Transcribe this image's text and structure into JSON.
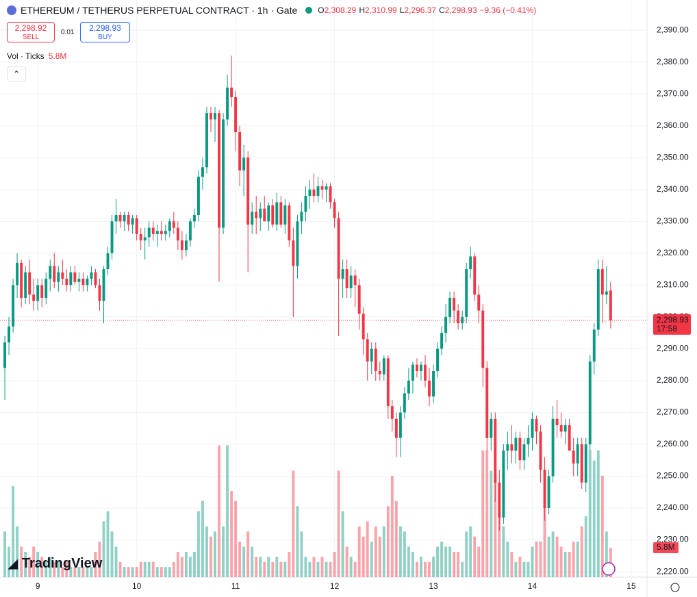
{
  "chart_data": {
    "type": "candlestick",
    "title": "ETHEREUM / TETHERUS PERPETUAL CONTRACT · 1h · Gate",
    "ohlc_legend": [
      {
        "label": "O",
        "value": "2,308.29"
      },
      {
        "label": "H",
        "value": "2,310.99"
      },
      {
        "label": "L",
        "value": "2,296.37"
      },
      {
        "label": "C",
        "value": "2,298.93"
      }
    ],
    "change": "−9.36 (−0.41%)",
    "sell": {
      "price": "2,298.92",
      "label": "SELL"
    },
    "spread": "0.01",
    "buy": {
      "price": "2,298.93",
      "label": "BUY"
    },
    "volume_legend": "Vol · Ticks",
    "last_volume_label": "5.8M",
    "last_price_label": "2,298.93",
    "countdown": "17:58",
    "logo": "TradingView",
    "up_color": "#089981",
    "down_color": "#f23645",
    "grid": true,
    "ylim": [
      2218.3,
      2399.5
    ],
    "yticks": [
      {
        "value": 2390,
        "label": "2,390.00"
      },
      {
        "value": 2380,
        "label": "2,380.00"
      },
      {
        "value": 2370,
        "label": "2,370.00"
      },
      {
        "value": 2360,
        "label": "2,360.00"
      },
      {
        "value": 2350,
        "label": "2,350.00"
      },
      {
        "value": 2340,
        "label": "2,340.00"
      },
      {
        "value": 2330,
        "label": "2,330.00"
      },
      {
        "value": 2320,
        "label": "2,320.00"
      },
      {
        "value": 2310,
        "label": "2,310.00"
      },
      {
        "value": 2300,
        "label": "2,300.00"
      },
      {
        "value": 2290,
        "label": "2,290.00"
      },
      {
        "value": 2280,
        "label": "2,280.00"
      },
      {
        "value": 2270,
        "label": "2,270.00"
      },
      {
        "value": 2260,
        "label": "2,260.00"
      },
      {
        "value": 2250,
        "label": "2,250.00"
      },
      {
        "value": 2240,
        "label": "2,240.00"
      },
      {
        "value": 2230,
        "label": "2,230.00"
      },
      {
        "value": 2220,
        "label": "2,220.00"
      }
    ],
    "xlim": [
      -1.17,
      155.83
    ],
    "xticks": [
      {
        "value": 8,
        "label": "9"
      },
      {
        "value": 32,
        "label": "10"
      },
      {
        "value": 56,
        "label": "11"
      },
      {
        "value": 80,
        "label": "12"
      },
      {
        "value": 104,
        "label": "13"
      },
      {
        "value": 128,
        "label": "14"
      },
      {
        "value": 152,
        "label": "15"
      }
    ],
    "vlim": [
      0,
      113.8
    ],
    "ohlcv": [
      [
        2284,
        2294,
        2274,
        2292,
        9
      ],
      [
        2292,
        2300,
        2288,
        2297,
        6
      ],
      [
        2297,
        2312,
        2295,
        2310,
        18
      ],
      [
        2310,
        2320,
        2306,
        2317,
        10
      ],
      [
        2317,
        2318,
        2303,
        2306,
        6
      ],
      [
        2306,
        2316,
        2304,
        2314,
        5
      ],
      [
        2314,
        2318,
        2304,
        2307,
        4
      ],
      [
        2307,
        2312,
        2302,
        2305,
        6
      ],
      [
        2305,
        2312,
        2302,
        2310,
        5
      ],
      [
        2310,
        2312,
        2303,
        2306,
        4
      ],
      [
        2306,
        2314,
        2304,
        2312,
        3
      ],
      [
        2312,
        2318,
        2308,
        2316,
        4
      ],
      [
        2316,
        2320,
        2309,
        2311,
        3
      ],
      [
        2311,
        2316,
        2308,
        2314,
        3
      ],
      [
        2314,
        2318,
        2310,
        2312,
        2
      ],
      [
        2312,
        2315,
        2308,
        2310,
        3
      ],
      [
        2310,
        2316,
        2308,
        2314,
        2
      ],
      [
        2314,
        2316,
        2310,
        2311,
        2
      ],
      [
        2311,
        2314,
        2308,
        2312,
        2
      ],
      [
        2312,
        2314,
        2308,
        2310,
        2
      ],
      [
        2310,
        2313,
        2308,
        2312,
        2
      ],
      [
        2312,
        2316,
        2310,
        2314,
        2
      ],
      [
        2314,
        2315,
        2309,
        2310,
        5
      ],
      [
        2310,
        2312,
        2302,
        2305,
        7
      ],
      [
        2305,
        2316,
        2298,
        2315,
        11
      ],
      [
        2315,
        2322,
        2313,
        2320,
        13
      ],
      [
        2320,
        2332,
        2318,
        2330,
        9
      ],
      [
        2330,
        2337,
        2326,
        2332,
        6
      ],
      [
        2332,
        2333,
        2328,
        2330,
        3
      ],
      [
        2330,
        2333,
        2327,
        2332,
        2
      ],
      [
        2332,
        2333,
        2327,
        2329,
        2
      ],
      [
        2329,
        2332,
        2326,
        2331,
        2
      ],
      [
        2331,
        2332,
        2324,
        2326,
        2
      ],
      [
        2326,
        2328,
        2321,
        2324,
        3
      ],
      [
        2324,
        2328,
        2318,
        2325,
        3
      ],
      [
        2325,
        2330,
        2322,
        2328,
        3
      ],
      [
        2328,
        2330,
        2324,
        2326,
        3
      ],
      [
        2326,
        2329,
        2322,
        2327,
        2
      ],
      [
        2327,
        2330,
        2324,
        2326,
        2
      ],
      [
        2326,
        2329,
        2324,
        2327,
        2
      ],
      [
        2327,
        2331,
        2325,
        2330,
        2
      ],
      [
        2330,
        2333,
        2326,
        2328,
        3
      ],
      [
        2328,
        2330,
        2321,
        2324,
        5
      ],
      [
        2324,
        2327,
        2318,
        2321,
        4
      ],
      [
        2321,
        2326,
        2319,
        2324,
        5
      ],
      [
        2324,
        2331,
        2322,
        2330,
        4
      ],
      [
        2330,
        2334,
        2328,
        2332,
        5
      ],
      [
        2332,
        2346,
        2330,
        2344,
        13
      ],
      [
        2344,
        2350,
        2340,
        2347,
        15
      ],
      [
        2347,
        2366,
        2345,
        2364,
        10
      ],
      [
        2364,
        2366,
        2358,
        2362,
        8
      ],
      [
        2362,
        2366,
        2355,
        2364,
        9
      ],
      [
        2364,
        2365,
        2311,
        2328,
        26
      ],
      [
        2328,
        2364,
        2326,
        2362,
        10
      ],
      [
        2362,
        2376,
        2360,
        2372,
        26
      ],
      [
        2372,
        2382,
        2366,
        2369,
        17
      ],
      [
        2369,
        2371,
        2352,
        2358,
        15
      ],
      [
        2358,
        2360,
        2341,
        2346,
        7
      ],
      [
        2346,
        2354,
        2338,
        2350,
        6
      ],
      [
        2350,
        2352,
        2314,
        2329,
        9
      ],
      [
        2329,
        2336,
        2326,
        2333,
        6
      ],
      [
        2333,
        2338,
        2326,
        2331,
        4
      ],
      [
        2331,
        2336,
        2327,
        2334,
        4
      ],
      [
        2334,
        2338,
        2330,
        2330,
        3
      ],
      [
        2330,
        2336,
        2327,
        2335,
        4
      ],
      [
        2335,
        2337,
        2328,
        2329,
        3
      ],
      [
        2329,
        2339,
        2327,
        2336,
        4
      ],
      [
        2336,
        2338,
        2328,
        2329,
        3
      ],
      [
        2329,
        2337,
        2326,
        2335,
        3
      ],
      [
        2335,
        2336,
        2322,
        2324,
        5
      ],
      [
        2324,
        2328,
        2300,
        2316,
        21
      ],
      [
        2316,
        2332,
        2312,
        2330,
        14
      ],
      [
        2330,
        2336,
        2326,
        2333,
        9
      ],
      [
        2333,
        2341,
        2330,
        2338,
        4
      ],
      [
        2338,
        2343,
        2334,
        2340,
        3
      ],
      [
        2340,
        2345,
        2336,
        2338,
        4
      ],
      [
        2338,
        2344,
        2336,
        2341,
        3
      ],
      [
        2341,
        2343,
        2337,
        2340,
        4
      ],
      [
        2340,
        2342,
        2336,
        2341,
        3
      ],
      [
        2341,
        2342,
        2334,
        2336,
        3
      ],
      [
        2336,
        2337,
        2328,
        2331,
        5
      ],
      [
        2331,
        2333,
        2294,
        2312,
        21
      ],
      [
        2312,
        2318,
        2306,
        2315,
        13
      ],
      [
        2315,
        2318,
        2306,
        2309,
        6
      ],
      [
        2309,
        2316,
        2306,
        2313,
        4
      ],
      [
        2313,
        2315,
        2303,
        2310,
        3
      ],
      [
        2310,
        2312,
        2296,
        2301,
        10
      ],
      [
        2301,
        2303,
        2288,
        2293,
        8
      ],
      [
        2293,
        2295,
        2280,
        2286,
        11
      ],
      [
        2286,
        2292,
        2282,
        2290,
        7
      ],
      [
        2290,
        2292,
        2280,
        2283,
        10
      ],
      [
        2283,
        2286,
        2280,
        2282,
        8
      ],
      [
        2282,
        2288,
        2280,
        2287,
        10
      ],
      [
        2287,
        2288,
        2268,
        2272,
        14
      ],
      [
        2272,
        2274,
        2264,
        2268,
        20
      ],
      [
        2268,
        2270,
        2256,
        2262,
        15
      ],
      [
        2262,
        2272,
        2256,
        2270,
        10
      ],
      [
        2270,
        2278,
        2268,
        2276,
        9
      ],
      [
        2276,
        2284,
        2274,
        2280,
        6
      ],
      [
        2280,
        2286,
        2276,
        2285,
        5
      ],
      [
        2285,
        2287,
        2281,
        2283,
        3
      ],
      [
        2283,
        2286,
        2280,
        2285,
        4
      ],
      [
        2285,
        2288,
        2278,
        2280,
        3
      ],
      [
        2280,
        2284,
        2272,
        2275,
        3
      ],
      [
        2275,
        2285,
        2273,
        2283,
        4
      ],
      [
        2283,
        2292,
        2281,
        2290,
        6
      ],
      [
        2290,
        2297,
        2288,
        2295,
        7
      ],
      [
        2295,
        2304,
        2292,
        2300,
        6
      ],
      [
        2300,
        2308,
        2298,
        2306,
        6
      ],
      [
        2306,
        2308,
        2298,
        2302,
        5
      ],
      [
        2302,
        2304,
        2296,
        2298,
        5
      ],
      [
        2298,
        2302,
        2296,
        2300,
        3
      ],
      [
        2300,
        2317,
        2298,
        2315,
        9
      ],
      [
        2315,
        2322,
        2312,
        2319,
        10
      ],
      [
        2319,
        2320,
        2305,
        2307,
        8
      ],
      [
        2307,
        2310,
        2298,
        2302,
        6
      ],
      [
        2302,
        2304,
        2278,
        2284,
        25
      ],
      [
        2284,
        2286,
        2258,
        2262,
        25
      ],
      [
        2262,
        2270,
        2258,
        2268,
        21
      ],
      [
        2268,
        2270,
        2242,
        2248,
        20
      ],
      [
        2248,
        2252,
        2233,
        2237,
        13
      ],
      [
        2237,
        2260,
        2235,
        2258,
        10
      ],
      [
        2258,
        2264,
        2252,
        2260,
        7
      ],
      [
        2260,
        2266,
        2254,
        2258,
        5
      ],
      [
        2258,
        2264,
        2254,
        2262,
        3
      ],
      [
        2262,
        2264,
        2252,
        2255,
        4
      ],
      [
        2255,
        2262,
        2252,
        2260,
        3
      ],
      [
        2260,
        2266,
        2256,
        2262,
        3
      ],
      [
        2262,
        2270,
        2258,
        2268,
        6
      ],
      [
        2268,
        2269,
        2260,
        2264,
        7
      ],
      [
        2264,
        2266,
        2248,
        2252,
        7
      ],
      [
        2252,
        2256,
        2236,
        2240,
        14
      ],
      [
        2240,
        2252,
        2238,
        2250,
        8
      ],
      [
        2250,
        2272,
        2248,
        2268,
        9
      ],
      [
        2268,
        2274,
        2262,
        2266,
        8
      ],
      [
        2266,
        2270,
        2262,
        2264,
        6
      ],
      [
        2264,
        2268,
        2260,
        2266,
        5
      ],
      [
        2266,
        2268,
        2258,
        2258,
        5
      ],
      [
        2258,
        2262,
        2250,
        2254,
        7
      ],
      [
        2254,
        2262,
        2250,
        2260,
        7
      ],
      [
        2260,
        2262,
        2246,
        2248,
        10
      ],
      [
        2248,
        2262,
        2245,
        2260,
        12
      ],
      [
        2260,
        2288,
        2258,
        2286,
        25
      ],
      [
        2286,
        2298,
        2282,
        2296,
        23
      ],
      [
        2296,
        2318,
        2294,
        2315,
        25
      ],
      [
        2315,
        2318,
        2298,
        2307,
        20
      ],
      [
        2307,
        2316,
        2304,
        2308,
        9
      ],
      [
        2308.29,
        2310.99,
        2296.37,
        2298.93,
        5.8
      ]
    ]
  }
}
